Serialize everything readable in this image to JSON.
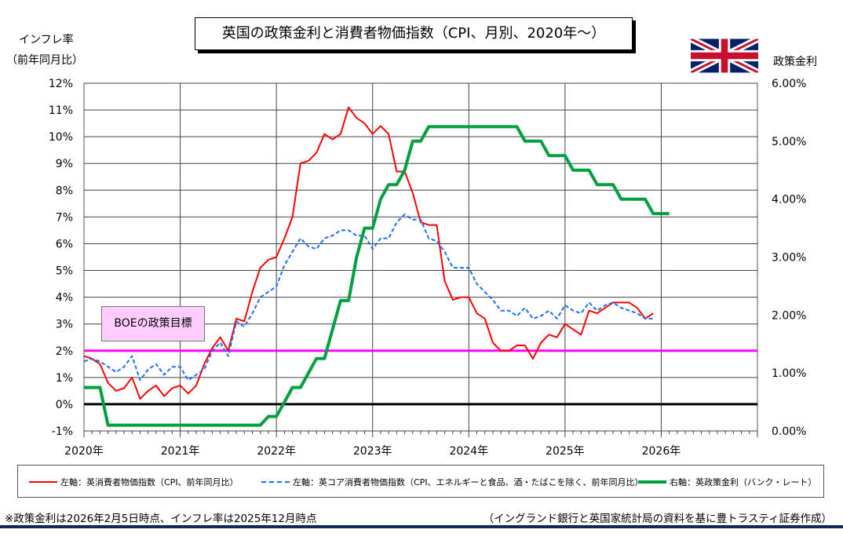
{
  "chart_data": {
    "type": "line",
    "title": "英国の政策金利と消費者物価指数（CPI、月別、2020年～）",
    "ylabel_left": [
      "インフレ率",
      "（前年同月比）"
    ],
    "ylabel_right": "政策金利",
    "x_start": "2020-01",
    "x_end": "2027-01",
    "xticks": [
      "2020年",
      "2021年",
      "2022年",
      "2023年",
      "2024年",
      "2025年",
      "2026年"
    ],
    "ylim_left": [
      -1,
      12
    ],
    "yticks_left": [
      "-1%",
      "0%",
      "1%",
      "2%",
      "3%",
      "4%",
      "5%",
      "6%",
      "7%",
      "8%",
      "9%",
      "10%",
      "11%",
      "12%"
    ],
    "ylim_right": [
      0,
      6
    ],
    "yticks_right": [
      "0.00%",
      "1.00%",
      "2.00%",
      "3.00%",
      "4.00%",
      "5.00%",
      "6.00%"
    ],
    "grid": true,
    "legend_placement": "bottom",
    "target": {
      "label": "BOEの政策目標",
      "value": 2,
      "color": "#ff00ff"
    },
    "series": [
      {
        "name": "左軸：英消費者物価指数（CPI、前年同月比）",
        "axis": "left",
        "color": "#ff0000",
        "style": "solid",
        "start": "2020-01",
        "values": [
          1.8,
          1.7,
          1.5,
          0.8,
          0.5,
          0.6,
          1.0,
          0.2,
          0.5,
          0.7,
          0.3,
          0.6,
          0.7,
          0.4,
          0.7,
          1.5,
          2.1,
          2.5,
          2.0,
          3.2,
          3.1,
          4.2,
          5.1,
          5.4,
          5.5,
          6.2,
          7.0,
          9.0,
          9.1,
          9.4,
          10.1,
          9.9,
          10.1,
          11.1,
          10.7,
          10.5,
          10.1,
          10.4,
          10.1,
          8.7,
          8.7,
          7.9,
          6.8,
          6.7,
          6.7,
          4.6,
          3.9,
          4.0,
          4.0,
          3.4,
          3.2,
          2.3,
          2.0,
          2.0,
          2.2,
          2.2,
          1.7,
          2.3,
          2.6,
          2.5,
          3.0,
          2.8,
          2.6,
          3.5,
          3.4,
          3.6,
          3.8,
          3.8,
          3.8,
          3.6,
          3.2,
          3.4
        ]
      },
      {
        "name": "左軸：英コア消費者物価指数（CPI、エネルギーと食品、酒・たばこを除く、前年同月比）",
        "axis": "left",
        "color": "#1a6fff",
        "style": "dashed",
        "start": "2020-01",
        "values": [
          1.6,
          1.7,
          1.6,
          1.4,
          1.2,
          1.4,
          1.8,
          0.9,
          1.3,
          1.5,
          1.1,
          1.4,
          1.4,
          0.9,
          1.1,
          1.3,
          2.0,
          2.3,
          1.8,
          3.1,
          2.9,
          3.4,
          4.0,
          4.2,
          4.4,
          5.2,
          5.7,
          6.2,
          5.9,
          5.8,
          6.2,
          6.3,
          6.5,
          6.5,
          6.3,
          6.3,
          5.8,
          6.2,
          6.2,
          6.8,
          7.1,
          6.9,
          6.9,
          6.2,
          6.1,
          5.7,
          5.1,
          5.1,
          5.1,
          4.5,
          4.2,
          3.9,
          3.5,
          3.5,
          3.3,
          3.6,
          3.2,
          3.3,
          3.5,
          3.2,
          3.7,
          3.5,
          3.4,
          3.8,
          3.5,
          3.7,
          3.8,
          3.6,
          3.5,
          3.4,
          3.2,
          3.2
        ]
      },
      {
        "name": "右軸：英政策金利（バンク・レート）",
        "axis": "right",
        "color": "#00a040",
        "style": "solid",
        "start": "2020-01",
        "values": [
          0.75,
          0.75,
          0.75,
          0.1,
          0.1,
          0.1,
          0.1,
          0.1,
          0.1,
          0.1,
          0.1,
          0.1,
          0.1,
          0.1,
          0.1,
          0.1,
          0.1,
          0.1,
          0.1,
          0.1,
          0.1,
          0.1,
          0.1,
          0.25,
          0.25,
          0.5,
          0.75,
          0.75,
          1.0,
          1.25,
          1.25,
          1.75,
          2.25,
          2.25,
          3.0,
          3.5,
          3.5,
          4.0,
          4.25,
          4.25,
          4.5,
          5.0,
          5.0,
          5.25,
          5.25,
          5.25,
          5.25,
          5.25,
          5.25,
          5.25,
          5.25,
          5.25,
          5.25,
          5.25,
          5.25,
          5.0,
          5.0,
          5.0,
          4.75,
          4.75,
          4.75,
          4.5,
          4.5,
          4.5,
          4.25,
          4.25,
          4.25,
          4.0,
          4.0,
          4.0,
          4.0,
          3.75,
          3.75,
          3.75
        ]
      }
    ]
  },
  "notes": {
    "left": "※政策金利は2026年2月5日時点、インフレ率は2025年12月時点",
    "right": "（イングランド銀行と英国家統計局の資料を基に豊トラスティ証券作成）"
  },
  "flag": "union-jack"
}
